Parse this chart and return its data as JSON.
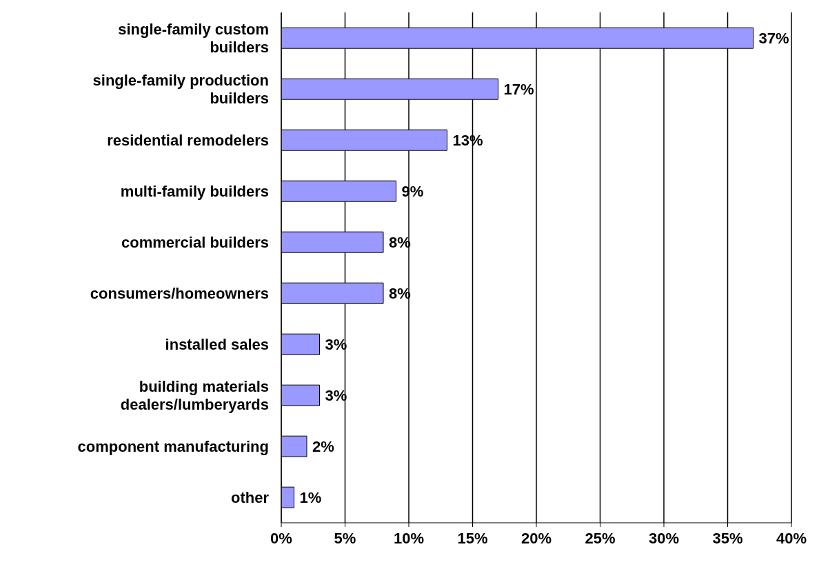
{
  "chart_data": {
    "type": "bar",
    "orientation": "horizontal",
    "categories": [
      "single-family custom builders",
      "single-family production builders",
      "residential remodelers",
      "multi-family builders",
      "commercial builders",
      "consumers/homeowners",
      "installed sales",
      "building materials dealers/lumberyards",
      "component manufacturing",
      "other"
    ],
    "values": [
      37,
      17,
      13,
      9,
      8,
      8,
      3,
      3,
      2,
      1
    ],
    "value_labels": [
      "37%",
      "17%",
      "13%",
      "9%",
      "8%",
      "8%",
      "3%",
      "3%",
      "2%",
      "1%"
    ],
    "color": "#9999ff",
    "xlim": [
      0,
      40
    ],
    "xticks": [
      {
        "value": 0,
        "label": "0%"
      },
      {
        "value": 5,
        "label": "5%"
      },
      {
        "value": 10,
        "label": "10%"
      },
      {
        "value": 15,
        "label": "15%"
      },
      {
        "value": 20,
        "label": "20%"
      },
      {
        "value": 25,
        "label": "25%"
      },
      {
        "value": 30,
        "label": "30%"
      },
      {
        "value": 35,
        "label": "35%"
      },
      {
        "value": 40,
        "label": "40%"
      }
    ],
    "grid": "x",
    "legend": false
  }
}
